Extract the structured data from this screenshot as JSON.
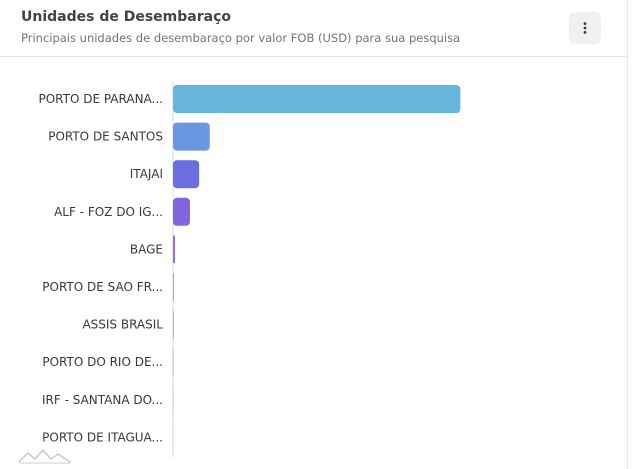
{
  "card": {
    "title": "Unidades de Desembaraço",
    "subtitle": "Principais unidades de desembaraço por valor FOB (USD) para sua pesquisa",
    "menu_icon": "vertical-dots-icon"
  },
  "chart_data": {
    "type": "bar",
    "orientation": "horizontal",
    "title": "",
    "xlabel": "",
    "ylabel": "",
    "grid": false,
    "legend": "none",
    "categories": [
      "PORTO DE PARANA...",
      "PORTO DE SANTOS",
      "ITAJAI",
      "ALF - FOZ DO IG...",
      "BAGE",
      "PORTO DE SAO FR...",
      "ASSIS BRASIL",
      "PORTO DO RIO DE...",
      "IRF - SANTANA DO...",
      "PORTO DE ITAGUA..."
    ],
    "values": [
      100,
      12.8,
      9.1,
      5.9,
      0.7,
      0.3,
      0.2,
      0.1,
      0.1,
      0.05
    ],
    "xlim": [
      0,
      158
    ],
    "colors": [
      "#66b6dc",
      "#6b97e0",
      "#6a6ee0",
      "#8265dd",
      "#9a6bd8",
      "#c59ad2",
      "#d7a9cd",
      "#e7c6d8",
      "#ecd6df",
      "#f0e0e6"
    ]
  }
}
